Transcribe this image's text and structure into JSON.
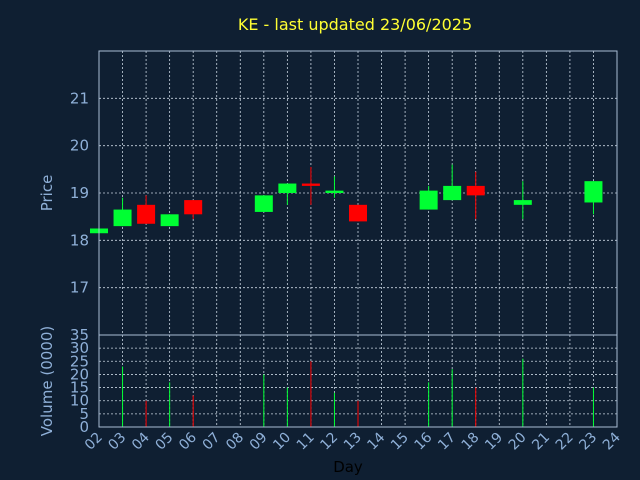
{
  "chart_data": {
    "type": "candlestick",
    "title": "KE - last updated 23/06/2025",
    "xlabel": "Day",
    "ylabel_price": "Price",
    "ylabel_volume": "Volume (0000)",
    "x_ticks": [
      "02",
      "03",
      "04",
      "05",
      "06",
      "07",
      "08",
      "09",
      "10",
      "11",
      "12",
      "13",
      "14",
      "15",
      "16",
      "17",
      "18",
      "19",
      "20",
      "21",
      "22",
      "23",
      "24"
    ],
    "price_ylim": [
      16,
      22
    ],
    "price_ticks": [
      17,
      18,
      19,
      20,
      21
    ],
    "volume_ylim": [
      0,
      35
    ],
    "volume_ticks": [
      0,
      5,
      10,
      15,
      20,
      25,
      30,
      35
    ],
    "grid": true,
    "colors": {
      "background": "#0f1f32",
      "title": "#ffff33",
      "axis_text": "#8fb0d8",
      "up": "#00ff33",
      "down": "#ff0000",
      "frame": "#a8bcd4"
    },
    "candles": [
      {
        "day": 2,
        "open": 18.15,
        "high": 18.25,
        "low": 18.15,
        "close": 18.25,
        "volume": 0
      },
      {
        "day": 3,
        "open": 18.3,
        "high": 18.9,
        "low": 18.3,
        "close": 18.65,
        "volume": 23
      },
      {
        "day": 4,
        "open": 18.75,
        "high": 18.95,
        "low": 18.35,
        "close": 18.35,
        "volume": 10
      },
      {
        "day": 5,
        "open": 18.3,
        "high": 18.55,
        "low": 18.3,
        "close": 18.55,
        "volume": 17
      },
      {
        "day": 6,
        "open": 18.85,
        "high": 18.85,
        "low": 18.45,
        "close": 18.55,
        "volume": 12
      },
      {
        "day": 9,
        "open": 18.6,
        "high": 18.95,
        "low": 18.6,
        "close": 18.95,
        "volume": 20
      },
      {
        "day": 10,
        "open": 19.0,
        "high": 19.2,
        "low": 18.75,
        "close": 19.2,
        "volume": 15
      },
      {
        "day": 11,
        "open": 19.2,
        "high": 19.55,
        "low": 18.75,
        "close": 19.15,
        "volume": 25
      },
      {
        "day": 12,
        "open": 19.0,
        "high": 19.35,
        "low": 18.9,
        "close": 19.05,
        "volume": 13
      },
      {
        "day": 13,
        "open": 18.75,
        "high": 18.75,
        "low": 18.4,
        "close": 18.4,
        "volume": 10
      },
      {
        "day": 16,
        "open": 18.65,
        "high": 19.15,
        "low": 18.65,
        "close": 19.05,
        "volume": 17
      },
      {
        "day": 17,
        "open": 18.85,
        "high": 19.6,
        "low": 18.85,
        "close": 19.15,
        "volume": 22
      },
      {
        "day": 18,
        "open": 19.15,
        "high": 19.45,
        "low": 18.45,
        "close": 18.95,
        "volume": 15
      },
      {
        "day": 20,
        "open": 18.75,
        "high": 19.25,
        "low": 18.45,
        "close": 18.85,
        "volume": 26
      },
      {
        "day": 23,
        "open": 18.8,
        "high": 19.25,
        "low": 18.55,
        "close": 19.25,
        "volume": 15
      }
    ]
  }
}
